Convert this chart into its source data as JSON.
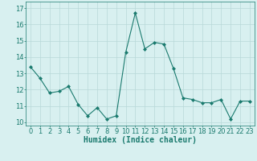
{
  "x": [
    0,
    1,
    2,
    3,
    4,
    5,
    6,
    7,
    8,
    9,
    10,
    11,
    12,
    13,
    14,
    15,
    16,
    17,
    18,
    19,
    20,
    21,
    22,
    23
  ],
  "y": [
    13.4,
    12.7,
    11.8,
    11.9,
    12.2,
    11.1,
    10.4,
    10.9,
    10.2,
    10.4,
    14.3,
    16.7,
    14.5,
    14.9,
    14.8,
    13.3,
    11.5,
    11.4,
    11.2,
    11.2,
    11.4,
    10.2,
    11.3,
    11.3
  ],
  "line_color": "#1a7a6e",
  "marker": "D",
  "marker_size": 2.0,
  "bg_color": "#d8f0f0",
  "grid_color": "#b8d8d8",
  "xlabel": "Humidex (Indice chaleur)",
  "xlabel_fontsize": 7,
  "tick_fontsize": 6,
  "ylim": [
    9.8,
    17.4
  ],
  "xlim": [
    -0.5,
    23.5
  ],
  "yticks": [
    10,
    11,
    12,
    13,
    14,
    15,
    16,
    17
  ],
  "xticks": [
    0,
    1,
    2,
    3,
    4,
    5,
    6,
    7,
    8,
    9,
    10,
    11,
    12,
    13,
    14,
    15,
    16,
    17,
    18,
    19,
    20,
    21,
    22,
    23
  ]
}
